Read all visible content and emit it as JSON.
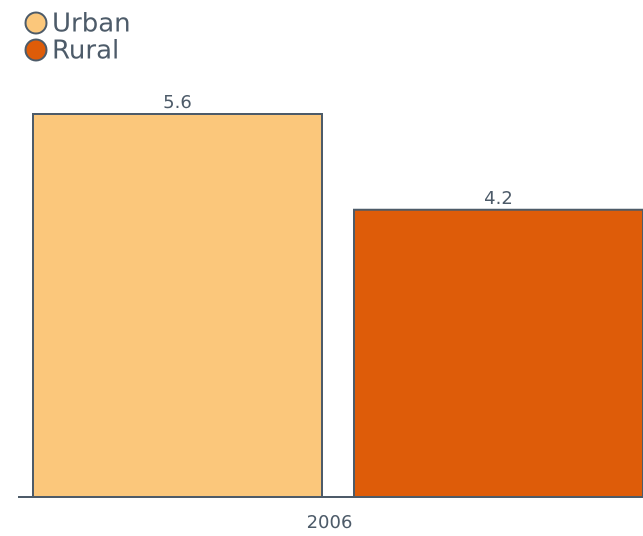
{
  "chart_data": {
    "type": "bar",
    "categories": [
      "2006"
    ],
    "series": [
      {
        "name": "Urban",
        "color": "#fbc77b",
        "values": [
          5.6
        ]
      },
      {
        "name": "Rural",
        "color": "#de5c09",
        "values": [
          4.2
        ]
      }
    ],
    "legend": "top-left"
  }
}
